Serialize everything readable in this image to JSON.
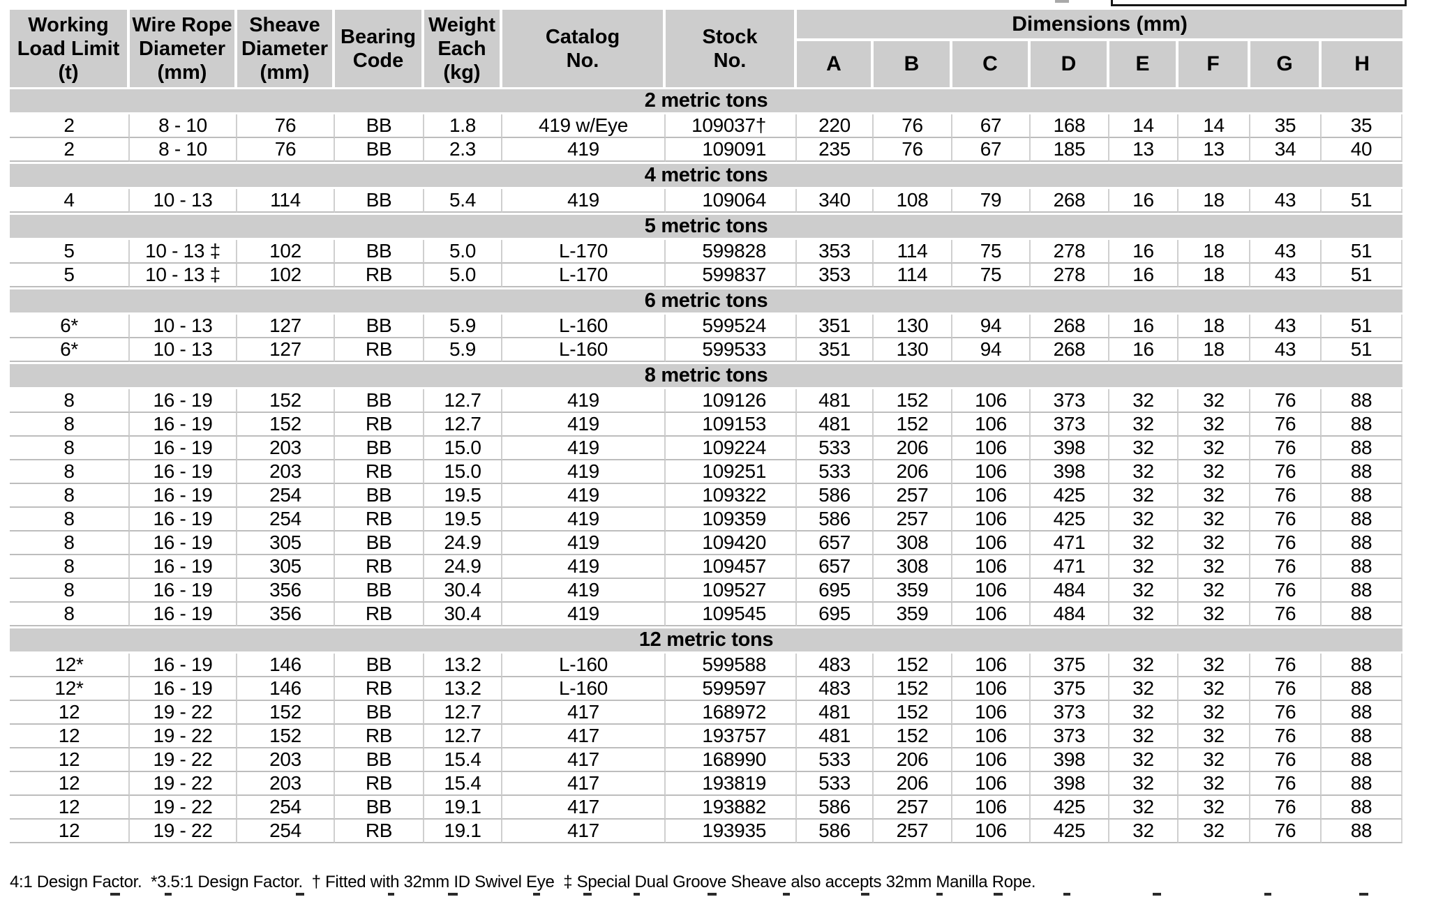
{
  "colors": {
    "header_bg": "#cdcdcd",
    "band_bg": "#cdcdcd",
    "row_separator": "#bdbdbd",
    "column_separator": "#cfcfcf"
  },
  "page": {
    "footnote": "4:1 Design Factor.  *3.5:1 Design Factor.  † Fitted with 32mm ID Swivel Eye  ‡ Special Dual Groove Sheave also accepts 32mm Manilla Rope."
  },
  "table": {
    "columns": [
      {
        "lines": [
          "Working",
          "Load Limit",
          "(t)"
        ]
      },
      {
        "lines": [
          "Wire Rope",
          "Diameter",
          "(mm)"
        ]
      },
      {
        "lines": [
          "Sheave",
          "Diameter",
          "(mm)"
        ]
      },
      {
        "lines": [
          "Bearing",
          "Code",
          ""
        ]
      },
      {
        "lines": [
          "Weight",
          "Each",
          "(kg)"
        ]
      },
      {
        "lines": [
          "Catalog",
          "No.",
          ""
        ]
      },
      {
        "lines": [
          "Stock",
          "No.",
          ""
        ]
      }
    ],
    "dimensions_header": "Dimensions (mm)",
    "dimension_columns": [
      "A",
      "B",
      "C",
      "D",
      "E",
      "F",
      "G",
      "H"
    ],
    "column_ids": [
      "wll",
      "wire-rope-diameter",
      "sheave-diameter",
      "bearing-code",
      "weight-each",
      "catalog-no",
      "stock-no",
      "dim-a",
      "dim-b",
      "dim-c",
      "dim-d",
      "dim-e",
      "dim-f",
      "dim-g",
      "dim-h"
    ],
    "sections": [
      {
        "label": "2 metric tons",
        "rows": [
          [
            "2",
            "8 - 10",
            "76",
            "BB",
            "1.8",
            "419 w/Eye",
            "109037†",
            "220",
            "76",
            "67",
            "168",
            "14",
            "14",
            "35",
            "35"
          ],
          [
            "2",
            "8 - 10",
            "76",
            "BB",
            "2.3",
            "419",
            "109091",
            "235",
            "76",
            "67",
            "185",
            "13",
            "13",
            "34",
            "40"
          ]
        ]
      },
      {
        "label": "4 metric tons",
        "rows": [
          [
            "4",
            "10 - 13",
            "114",
            "BB",
            "5.4",
            "419",
            "109064",
            "340",
            "108",
            "79",
            "268",
            "16",
            "18",
            "43",
            "51"
          ]
        ]
      },
      {
        "label": "5 metric tons",
        "rows": [
          [
            "5",
            "10 - 13 ‡",
            "102",
            "BB",
            "5.0",
            "L-170",
            "599828",
            "353",
            "114",
            "75",
            "278",
            "16",
            "18",
            "43",
            "51"
          ],
          [
            "5",
            "10 - 13 ‡",
            "102",
            "RB",
            "5.0",
            "L-170",
            "599837",
            "353",
            "114",
            "75",
            "278",
            "16",
            "18",
            "43",
            "51"
          ]
        ]
      },
      {
        "label": "6 metric tons",
        "rows": [
          [
            "6*",
            "10 - 13",
            "127",
            "BB",
            "5.9",
            "L-160",
            "599524",
            "351",
            "130",
            "94",
            "268",
            "16",
            "18",
            "43",
            "51"
          ],
          [
            "6*",
            "10 - 13",
            "127",
            "RB",
            "5.9",
            "L-160",
            "599533",
            "351",
            "130",
            "94",
            "268",
            "16",
            "18",
            "43",
            "51"
          ]
        ]
      },
      {
        "label": "8 metric tons",
        "rows": [
          [
            "8",
            "16 - 19",
            "152",
            "BB",
            "12.7",
            "419",
            "109126",
            "481",
            "152",
            "106",
            "373",
            "32",
            "32",
            "76",
            "88"
          ],
          [
            "8",
            "16 - 19",
            "152",
            "RB",
            "12.7",
            "419",
            "109153",
            "481",
            "152",
            "106",
            "373",
            "32",
            "32",
            "76",
            "88"
          ],
          [
            "8",
            "16 - 19",
            "203",
            "BB",
            "15.0",
            "419",
            "109224",
            "533",
            "206",
            "106",
            "398",
            "32",
            "32",
            "76",
            "88"
          ],
          [
            "8",
            "16 - 19",
            "203",
            "RB",
            "15.0",
            "419",
            "109251",
            "533",
            "206",
            "106",
            "398",
            "32",
            "32",
            "76",
            "88"
          ],
          [
            "8",
            "16 - 19",
            "254",
            "BB",
            "19.5",
            "419",
            "109322",
            "586",
            "257",
            "106",
            "425",
            "32",
            "32",
            "76",
            "88"
          ],
          [
            "8",
            "16 - 19",
            "254",
            "RB",
            "19.5",
            "419",
            "109359",
            "586",
            "257",
            "106",
            "425",
            "32",
            "32",
            "76",
            "88"
          ],
          [
            "8",
            "16 - 19",
            "305",
            "BB",
            "24.9",
            "419",
            "109420",
            "657",
            "308",
            "106",
            "471",
            "32",
            "32",
            "76",
            "88"
          ],
          [
            "8",
            "16 - 19",
            "305",
            "RB",
            "24.9",
            "419",
            "109457",
            "657",
            "308",
            "106",
            "471",
            "32",
            "32",
            "76",
            "88"
          ],
          [
            "8",
            "16 - 19",
            "356",
            "BB",
            "30.4",
            "419",
            "109527",
            "695",
            "359",
            "106",
            "484",
            "32",
            "32",
            "76",
            "88"
          ],
          [
            "8",
            "16 - 19",
            "356",
            "RB",
            "30.4",
            "419",
            "109545",
            "695",
            "359",
            "106",
            "484",
            "32",
            "32",
            "76",
            "88"
          ]
        ]
      },
      {
        "label": "12 metric tons",
        "rows": [
          [
            "12*",
            "16 - 19",
            "146",
            "BB",
            "13.2",
            "L-160",
            "599588",
            "483",
            "152",
            "106",
            "375",
            "32",
            "32",
            "76",
            "88"
          ],
          [
            "12*",
            "16 - 19",
            "146",
            "RB",
            "13.2",
            "L-160",
            "599597",
            "483",
            "152",
            "106",
            "375",
            "32",
            "32",
            "76",
            "88"
          ],
          [
            "12",
            "19 - 22",
            "152",
            "BB",
            "12.7",
            "417",
            "168972",
            "481",
            "152",
            "106",
            "373",
            "32",
            "32",
            "76",
            "88"
          ],
          [
            "12",
            "19 - 22",
            "152",
            "RB",
            "12.7",
            "417",
            "193757",
            "481",
            "152",
            "106",
            "373",
            "32",
            "32",
            "76",
            "88"
          ],
          [
            "12",
            "19 - 22",
            "203",
            "BB",
            "15.4",
            "417",
            "168990",
            "533",
            "206",
            "106",
            "398",
            "32",
            "32",
            "76",
            "88"
          ],
          [
            "12",
            "19 - 22",
            "203",
            "RB",
            "15.4",
            "417",
            "193819",
            "533",
            "206",
            "106",
            "398",
            "32",
            "32",
            "76",
            "88"
          ],
          [
            "12",
            "19 - 22",
            "254",
            "BB",
            "19.1",
            "417",
            "193882",
            "586",
            "257",
            "106",
            "425",
            "32",
            "32",
            "76",
            "88"
          ],
          [
            "12",
            "19 - 22",
            "254",
            "RB",
            "19.1",
            "417",
            "193935",
            "586",
            "257",
            "106",
            "425",
            "32",
            "32",
            "76",
            "88"
          ]
        ]
      }
    ]
  }
}
